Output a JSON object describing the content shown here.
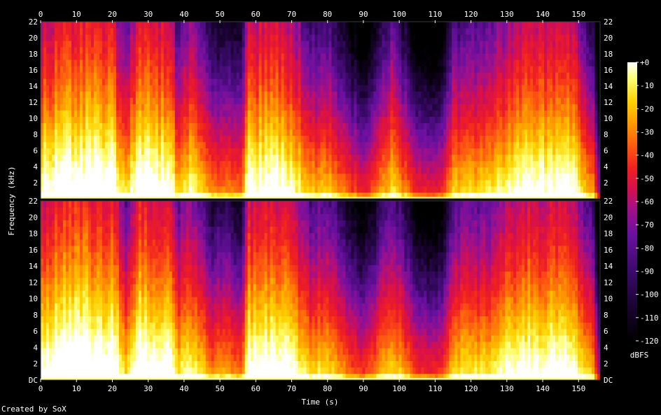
{
  "chart_data": {
    "type": "heatmap",
    "title": "",
    "xlabel": "Time (s)",
    "ylabel": "Frequency (kHz)",
    "colorbar_label": "dBFS",
    "xlim": [
      0,
      156
    ],
    "ylim": [
      0,
      22
    ],
    "x_ticks": [
      0,
      10,
      20,
      30,
      40,
      50,
      60,
      70,
      80,
      90,
      100,
      110,
      120,
      130,
      140,
      150
    ],
    "y_ticks": [
      {
        "value": 0,
        "label": "DC"
      },
      {
        "value": 2,
        "label": "2"
      },
      {
        "value": 4,
        "label": "4"
      },
      {
        "value": 6,
        "label": "6"
      },
      {
        "value": 8,
        "label": "8"
      },
      {
        "value": 10,
        "label": "10"
      },
      {
        "value": 12,
        "label": "12"
      },
      {
        "value": 14,
        "label": "14"
      },
      {
        "value": 16,
        "label": "16"
      },
      {
        "value": 18,
        "label": "18"
      },
      {
        "value": 20,
        "label": "20"
      },
      {
        "value": 22,
        "label": "22"
      }
    ],
    "colorbar_range": [
      -120,
      0
    ],
    "colorbar_ticks": [
      "+0",
      "-10",
      "-20",
      "-30",
      "-40",
      "-50",
      "-60",
      "-70",
      "-80",
      "-90",
      "-100",
      "-110",
      "-120"
    ],
    "channels": [
      {
        "name": "channel-1-top"
      },
      {
        "name": "channel-2-bottom"
      }
    ],
    "colormap": [
      "#000000",
      "#1a0330",
      "#3b0a6b",
      "#6a10a0",
      "#a0108a",
      "#d8104a",
      "#f02020",
      "#ff5a10",
      "#ff9a00",
      "#ffd200",
      "#ffff70",
      "#ffffff"
    ],
    "energy_profile": [
      {
        "t": 0,
        "level": 0.8
      },
      {
        "t": 3,
        "level": 0.85
      },
      {
        "t": 10,
        "level": 0.92
      },
      {
        "t": 20,
        "level": 0.88
      },
      {
        "t": 24,
        "level": 0.6
      },
      {
        "t": 27,
        "level": 0.88
      },
      {
        "t": 36,
        "level": 0.85
      },
      {
        "t": 38,
        "level": 0.6
      },
      {
        "t": 42,
        "level": 0.72
      },
      {
        "t": 48,
        "level": 0.45
      },
      {
        "t": 52,
        "level": 0.5
      },
      {
        "t": 56,
        "level": 0.42
      },
      {
        "t": 58,
        "level": 0.82
      },
      {
        "t": 68,
        "level": 0.85
      },
      {
        "t": 76,
        "level": 0.55
      },
      {
        "t": 79,
        "level": 0.62
      },
      {
        "t": 86,
        "level": 0.4
      },
      {
        "t": 90,
        "level": 0.3
      },
      {
        "t": 94,
        "level": 0.45
      },
      {
        "t": 98,
        "level": 0.62
      },
      {
        "t": 106,
        "level": 0.28
      },
      {
        "t": 112,
        "level": 0.3
      },
      {
        "t": 115,
        "level": 0.6
      },
      {
        "t": 124,
        "level": 0.62
      },
      {
        "t": 128,
        "level": 0.7
      },
      {
        "t": 134,
        "level": 0.8
      },
      {
        "t": 148,
        "level": 0.82
      },
      {
        "t": 154,
        "level": 0.5
      },
      {
        "t": 156,
        "level": 0.05
      }
    ]
  },
  "footer": {
    "credit": "Created by SoX"
  }
}
